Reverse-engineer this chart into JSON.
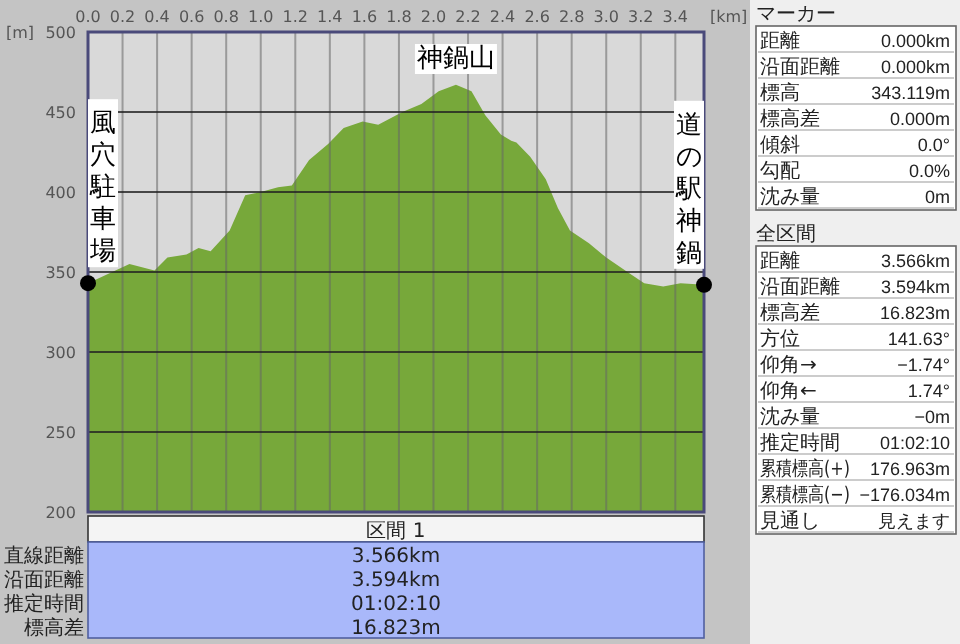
{
  "chart_data": {
    "type": "area",
    "xlabel": "[km]",
    "ylabel": "[m]",
    "xlim": [
      0,
      3.566
    ],
    "ylim": [
      200,
      500
    ],
    "xticks": [
      {
        "value": 0,
        "label": "0.0"
      },
      0.2,
      0.4,
      0.6,
      0.8,
      {
        "value": 1,
        "label": "1.0"
      },
      1.2,
      1.4,
      1.6,
      1.8,
      {
        "value": 2,
        "label": "2.0"
      },
      2.2,
      2.4,
      2.6,
      2.8,
      {
        "value": 3,
        "label": "3.0"
      },
      3.2,
      3.4
    ],
    "yticks": [
      200,
      250,
      300,
      350,
      400,
      450,
      500
    ],
    "grid": true,
    "series": [
      {
        "color": "#77a83a",
        "x": [
          0,
          0.24,
          0.385,
          0.46,
          0.57,
          0.64,
          0.71,
          0.82,
          0.91,
          1.0,
          1.1,
          1.18,
          1.28,
          1.39,
          1.48,
          1.59,
          1.68,
          1.82,
          1.93,
          2.03,
          2.13,
          2.22,
          2.3,
          2.39,
          2.45,
          2.48,
          2.56,
          2.65,
          2.72,
          2.79,
          2.9,
          3.0,
          3.11,
          3.22,
          3.33,
          3.43,
          3.566
        ],
        "values": [
          343,
          355,
          351,
          359,
          361,
          365,
          363,
          376,
          398,
          400,
          403,
          404,
          420,
          430,
          440,
          444,
          442,
          450,
          455,
          463,
          467,
          463,
          448,
          436,
          432,
          431,
          422,
          408,
          390,
          376,
          368,
          359,
          351,
          343,
          341,
          343,
          342
        ]
      },
      {
        "type": "scatter",
        "color": "#000000",
        "marker": "circle",
        "x": [
          0,
          3.566
        ],
        "values": [
          343,
          342
        ]
      }
    ],
    "annotations": [
      "区間 1",
      "直線距離",
      "沿面距離",
      "推定時間",
      "標高差",
      "3.566km",
      "3.594km",
      "01:02:10",
      "16.823m",
      "マーカー",
      "距離",
      "0.000km",
      "沿面距離",
      "0.000km",
      "標高",
      "343.119m",
      "標高差",
      "0.000m",
      "傾斜",
      "0.0°",
      "勾配",
      "0.0%",
      "沈み量",
      "0m",
      "全区間",
      "距離",
      "3.566km",
      "沿面距離",
      "3.594km",
      "標高差",
      "16.823m",
      "方位",
      "141.63°",
      "仰角→",
      "−1.74°",
      "仰角←",
      "1.74°",
      "沈み量",
      "−0m",
      "推定時間",
      "01:02:10",
      "累積標高(+)",
      "176.963m",
      "累積標高(−)",
      "−176.034m",
      "見通し",
      "見えます",
      {
        "text": "風穴駐車場",
        "x": 0,
        "y": 343
      },
      {
        "text": "神鍋山",
        "x": 2.13,
        "y": 467
      },
      {
        "text": "道の駅神鍋",
        "x": 3.566,
        "y": 342
      }
    ]
  }
}
